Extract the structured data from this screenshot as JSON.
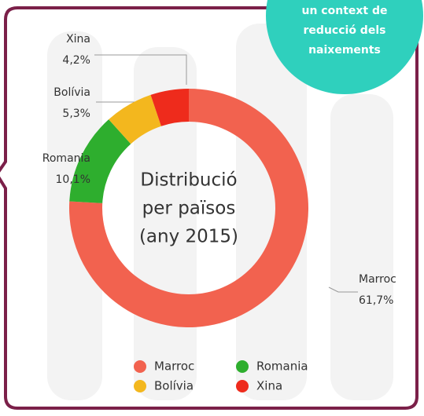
{
  "chart_data": {
    "type": "donut",
    "categories": [
      "Marroc",
      "Romania",
      "Bolívia",
      "Xina"
    ],
    "values": [
      61.7,
      10.1,
      5.3,
      4.2
    ],
    "value_labels": [
      "61,7%",
      "10,1%",
      "5,3%",
      "4,2%"
    ],
    "colors": [
      "#f2624f",
      "#2eae2e",
      "#f3b71e",
      "#ee2b1c"
    ],
    "center_text": [
      "Distribució",
      "per països",
      "(any 2015)"
    ],
    "legend": true
  },
  "badge": [
    "un context de",
    "reducció dels",
    "naixements"
  ]
}
